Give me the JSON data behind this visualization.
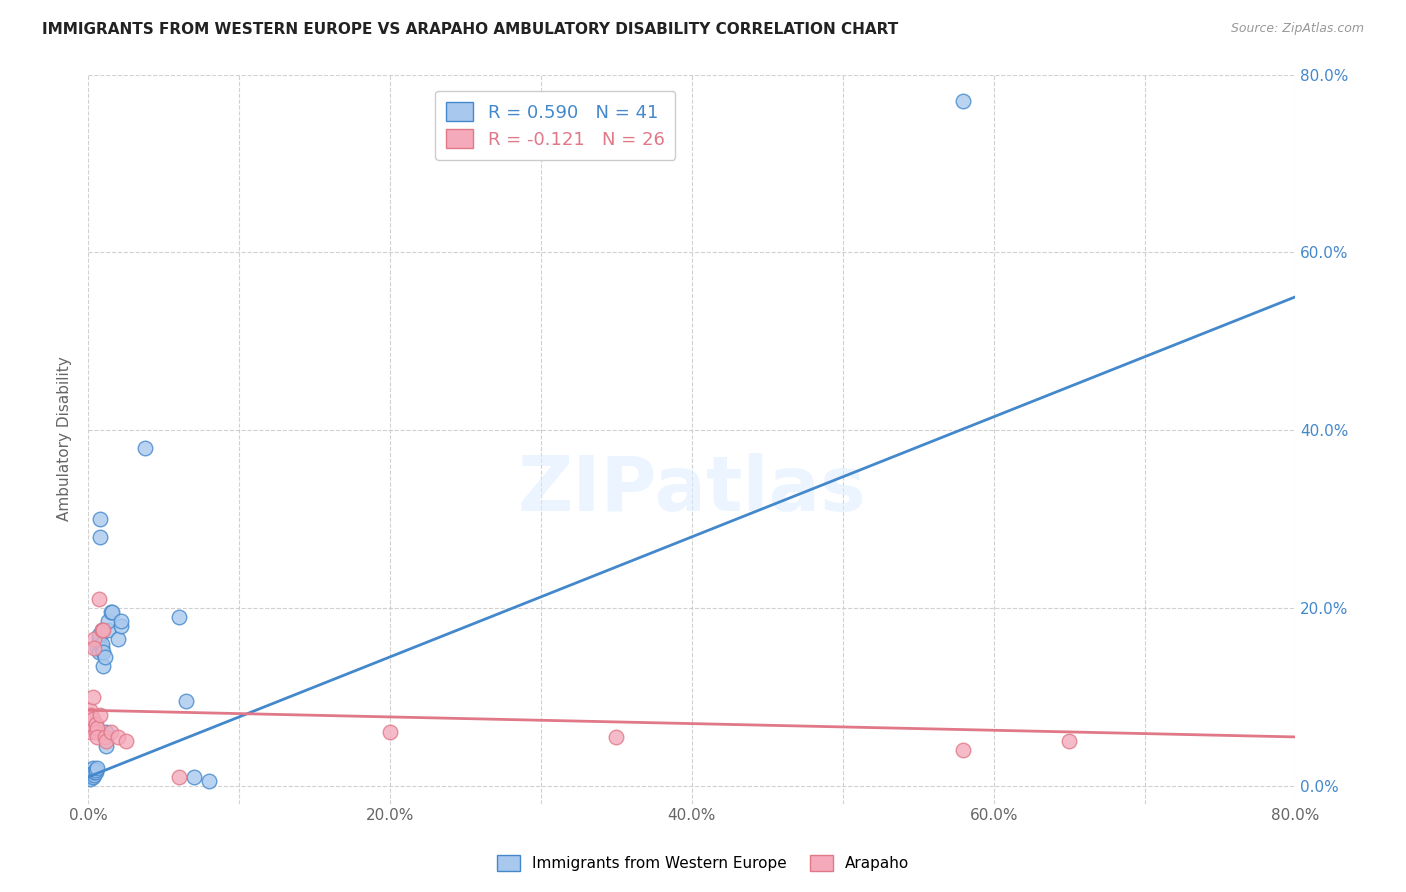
{
  "title": "IMMIGRANTS FROM WESTERN EUROPE VS ARAPAHO AMBULATORY DISABILITY CORRELATION CHART",
  "source": "Source: ZipAtlas.com",
  "ylabel": "Ambulatory Disability",
  "xlim": [
    0.0,
    0.8
  ],
  "ylim": [
    -0.02,
    0.8
  ],
  "xtick_labels": [
    "0.0%",
    "",
    "20.0%",
    "",
    "40.0%",
    "",
    "60.0%",
    "",
    "80.0%"
  ],
  "xtick_vals": [
    0.0,
    0.1,
    0.2,
    0.3,
    0.4,
    0.5,
    0.6,
    0.7,
    0.8
  ],
  "ytick_labels_right": [
    "80.0%",
    "60.0%",
    "40.0%",
    "20.0%",
    "0.0%"
  ],
  "ytick_vals": [
    0.8,
    0.6,
    0.4,
    0.2,
    0.0
  ],
  "blue_R": 0.59,
  "blue_N": 41,
  "pink_R": -0.121,
  "pink_N": 26,
  "blue_label": "Immigrants from Western Europe",
  "pink_label": "Arapaho",
  "blue_color": "#A8C8EE",
  "pink_color": "#F4AABB",
  "blue_line_color": "#4488CC",
  "pink_line_color": "#E07888",
  "grid_color": "#CCCCCC",
  "background_color": "#FFFFFF",
  "blue_line_x": [
    0.0,
    0.8
  ],
  "blue_line_y": [
    0.01,
    0.55
  ],
  "pink_line_x": [
    0.0,
    0.8
  ],
  "pink_line_y": [
    0.085,
    0.055
  ],
  "blue_points": [
    [
      0.001,
      0.01
    ],
    [
      0.001,
      0.012
    ],
    [
      0.001,
      0.008
    ],
    [
      0.002,
      0.015
    ],
    [
      0.002,
      0.012
    ],
    [
      0.002,
      0.018
    ],
    [
      0.003,
      0.01
    ],
    [
      0.003,
      0.02
    ],
    [
      0.003,
      0.014
    ],
    [
      0.004,
      0.012
    ],
    [
      0.004,
      0.016
    ],
    [
      0.005,
      0.015
    ],
    [
      0.005,
      0.018
    ],
    [
      0.006,
      0.02
    ],
    [
      0.006,
      0.155
    ],
    [
      0.007,
      0.165
    ],
    [
      0.007,
      0.15
    ],
    [
      0.007,
      0.17
    ],
    [
      0.008,
      0.28
    ],
    [
      0.008,
      0.3
    ],
    [
      0.009,
      0.155
    ],
    [
      0.009,
      0.175
    ],
    [
      0.009,
      0.16
    ],
    [
      0.01,
      0.135
    ],
    [
      0.01,
      0.15
    ],
    [
      0.011,
      0.145
    ],
    [
      0.012,
      0.045
    ],
    [
      0.012,
      0.06
    ],
    [
      0.013,
      0.175
    ],
    [
      0.013,
      0.185
    ],
    [
      0.015,
      0.195
    ],
    [
      0.016,
      0.195
    ],
    [
      0.02,
      0.165
    ],
    [
      0.022,
      0.18
    ],
    [
      0.022,
      0.185
    ],
    [
      0.038,
      0.38
    ],
    [
      0.06,
      0.19
    ],
    [
      0.065,
      0.095
    ],
    [
      0.07,
      0.01
    ],
    [
      0.08,
      0.005
    ],
    [
      0.58,
      0.77
    ]
  ],
  "pink_points": [
    [
      0.001,
      0.085
    ],
    [
      0.001,
      0.06
    ],
    [
      0.002,
      0.07
    ],
    [
      0.002,
      0.08
    ],
    [
      0.003,
      0.1
    ],
    [
      0.003,
      0.075
    ],
    [
      0.004,
      0.165
    ],
    [
      0.004,
      0.155
    ],
    [
      0.005,
      0.07
    ],
    [
      0.005,
      0.06
    ],
    [
      0.006,
      0.065
    ],
    [
      0.006,
      0.055
    ],
    [
      0.007,
      0.21
    ],
    [
      0.008,
      0.08
    ],
    [
      0.009,
      0.175
    ],
    [
      0.01,
      0.175
    ],
    [
      0.011,
      0.055
    ],
    [
      0.012,
      0.05
    ],
    [
      0.015,
      0.06
    ],
    [
      0.02,
      0.055
    ],
    [
      0.025,
      0.05
    ],
    [
      0.06,
      0.01
    ],
    [
      0.2,
      0.06
    ],
    [
      0.35,
      0.055
    ],
    [
      0.58,
      0.04
    ],
    [
      0.65,
      0.05
    ]
  ]
}
